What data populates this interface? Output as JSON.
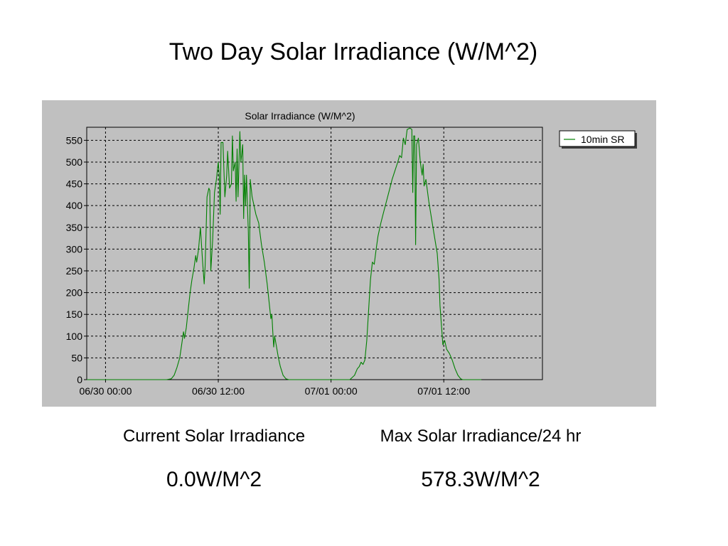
{
  "page": {
    "title": "Two Day Solar Irradiance (W/M^2)"
  },
  "stats": {
    "current_label": "Current Solar Irradiance",
    "current_value": "0.0W/M^2",
    "max_label": "Max Solar Irradiance/24 hr",
    "max_value": "578.3W/M^2"
  },
  "chart_data": {
    "type": "line",
    "title": "Solar Irradiance (W/M^2)",
    "xlabel": "",
    "ylabel": "",
    "x_unit": "hours since 06/30 00:00",
    "xlim": [
      -2,
      46.5
    ],
    "ylim": [
      0,
      580
    ],
    "yticks": [
      0,
      50,
      100,
      150,
      200,
      250,
      300,
      350,
      400,
      450,
      500,
      550
    ],
    "xticks": [
      {
        "value": 0,
        "label": "06/30 00:00"
      },
      {
        "value": 12,
        "label": "06/30 12:00"
      },
      {
        "value": 24,
        "label": "07/01 00:00"
      },
      {
        "value": 36,
        "label": "07/01 12:00"
      }
    ],
    "grid": true,
    "legend_position": "top-right",
    "series": [
      {
        "name": "10min SR",
        "color": "#008000",
        "points": [
          [
            -2,
            0
          ],
          [
            6.5,
            0
          ],
          [
            7.0,
            2
          ],
          [
            7.3,
            10
          ],
          [
            7.6,
            28
          ],
          [
            7.9,
            50
          ],
          [
            8.1,
            80
          ],
          [
            8.3,
            110
          ],
          [
            8.4,
            95
          ],
          [
            8.6,
            120
          ],
          [
            8.8,
            160
          ],
          [
            9.0,
            200
          ],
          [
            9.2,
            230
          ],
          [
            9.4,
            255
          ],
          [
            9.6,
            285
          ],
          [
            9.7,
            270
          ],
          [
            9.9,
            300
          ],
          [
            10.1,
            350
          ],
          [
            10.3,
            280
          ],
          [
            10.5,
            220
          ],
          [
            10.6,
            260
          ],
          [
            10.8,
            420
          ],
          [
            11.0,
            440
          ],
          [
            11.1,
            435
          ],
          [
            11.2,
            250
          ],
          [
            11.4,
            320
          ],
          [
            11.6,
            430
          ],
          [
            11.8,
            460
          ],
          [
            12.0,
            500
          ],
          [
            12.1,
            470
          ],
          [
            12.2,
            380
          ],
          [
            12.3,
            545
          ],
          [
            12.5,
            545
          ],
          [
            12.7,
            420
          ],
          [
            12.9,
            470
          ],
          [
            13.0,
            525
          ],
          [
            13.2,
            440
          ],
          [
            13.4,
            450
          ],
          [
            13.5,
            560
          ],
          [
            13.6,
            480
          ],
          [
            13.8,
            500
          ],
          [
            13.9,
            410
          ],
          [
            14.0,
            530
          ],
          [
            14.1,
            420
          ],
          [
            14.3,
            570
          ],
          [
            14.4,
            500
          ],
          [
            14.6,
            540
          ],
          [
            14.7,
            370
          ],
          [
            14.8,
            470
          ],
          [
            14.9,
            400
          ],
          [
            15.0,
            470
          ],
          [
            15.2,
            340
          ],
          [
            15.3,
            210
          ],
          [
            15.4,
            460
          ],
          [
            15.6,
            420
          ],
          [
            15.8,
            400
          ],
          [
            16.0,
            380
          ],
          [
            16.3,
            360
          ],
          [
            16.6,
            310
          ],
          [
            16.9,
            270
          ],
          [
            17.2,
            220
          ],
          [
            17.4,
            180
          ],
          [
            17.6,
            140
          ],
          [
            17.7,
            150
          ],
          [
            17.8,
            110
          ],
          [
            17.9,
            75
          ],
          [
            18.0,
            100
          ],
          [
            18.2,
            75
          ],
          [
            18.4,
            50
          ],
          [
            18.6,
            30
          ],
          [
            18.9,
            10
          ],
          [
            19.2,
            2
          ],
          [
            19.5,
            0
          ],
          [
            26.0,
            0
          ],
          [
            26.5,
            10
          ],
          [
            26.8,
            25
          ],
          [
            27.0,
            30
          ],
          [
            27.2,
            40
          ],
          [
            27.4,
            35
          ],
          [
            27.6,
            45
          ],
          [
            27.8,
            90
          ],
          [
            28.0,
            160
          ],
          [
            28.2,
            230
          ],
          [
            28.4,
            270
          ],
          [
            28.6,
            265
          ],
          [
            28.8,
            300
          ],
          [
            29.0,
            330
          ],
          [
            29.3,
            360
          ],
          [
            29.6,
            385
          ],
          [
            29.9,
            410
          ],
          [
            30.2,
            435
          ],
          [
            30.5,
            460
          ],
          [
            30.8,
            480
          ],
          [
            31.1,
            500
          ],
          [
            31.3,
            515
          ],
          [
            31.5,
            510
          ],
          [
            31.7,
            555
          ],
          [
            31.9,
            540
          ],
          [
            32.1,
            575
          ],
          [
            32.4,
            578
          ],
          [
            32.6,
            575
          ],
          [
            32.7,
            430
          ],
          [
            32.8,
            560
          ],
          [
            32.9,
            560
          ],
          [
            33.0,
            310
          ],
          [
            33.1,
            540
          ],
          [
            33.3,
            555
          ],
          [
            33.5,
            500
          ],
          [
            33.7,
            470
          ],
          [
            33.8,
            495
          ],
          [
            33.9,
            445
          ],
          [
            34.1,
            460
          ],
          [
            34.4,
            410
          ],
          [
            34.7,
            370
          ],
          [
            35.0,
            330
          ],
          [
            35.3,
            290
          ],
          [
            35.5,
            230
          ],
          [
            35.6,
            170
          ],
          [
            35.8,
            110
          ],
          [
            35.9,
            80
          ],
          [
            36.1,
            90
          ],
          [
            36.3,
            70
          ],
          [
            36.6,
            60
          ],
          [
            36.9,
            45
          ],
          [
            37.2,
            25
          ],
          [
            37.5,
            10
          ],
          [
            37.8,
            2
          ],
          [
            38.0,
            0
          ],
          [
            40.0,
            0
          ]
        ]
      }
    ]
  }
}
